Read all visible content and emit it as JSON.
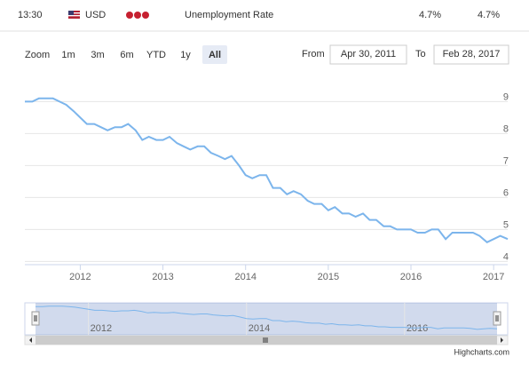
{
  "header": {
    "time": "13:30",
    "currency": "USD",
    "event": "Unemployment Rate",
    "actual": "4.7%",
    "forecast": "4.7%"
  },
  "range_selector": {
    "zoom_label": "Zoom",
    "buttons": [
      "1m",
      "3m",
      "6m",
      "YTD",
      "1y",
      "All"
    ],
    "from_label": "From",
    "from": "Apr 30, 2011",
    "to_label": "To",
    "to": "Feb 28, 2017"
  },
  "credits": "Highcharts.com",
  "chart_data": {
    "type": "line",
    "x": [
      2011.33,
      2011.42,
      2011.5,
      2011.58,
      2011.67,
      2011.75,
      2011.83,
      2011.92,
      2012,
      2012.08,
      2012.17,
      2012.25,
      2012.33,
      2012.42,
      2012.5,
      2012.58,
      2012.67,
      2012.75,
      2012.83,
      2012.92,
      2013,
      2013.08,
      2013.17,
      2013.25,
      2013.33,
      2013.42,
      2013.5,
      2013.58,
      2013.67,
      2013.75,
      2013.83,
      2013.92,
      2014,
      2014.08,
      2014.17,
      2014.25,
      2014.33,
      2014.42,
      2014.5,
      2014.58,
      2014.67,
      2014.75,
      2014.83,
      2014.92,
      2015,
      2015.08,
      2015.17,
      2015.25,
      2015.33,
      2015.42,
      2015.5,
      2015.58,
      2015.67,
      2015.75,
      2015.83,
      2015.92,
      2016,
      2016.08,
      2016.17,
      2016.25,
      2016.33,
      2016.42,
      2016.5,
      2016.58,
      2016.67,
      2016.75,
      2016.83,
      2016.92,
      2017,
      2017.08,
      2017.17
    ],
    "series": [
      {
        "color": "#7cb5ec",
        "values": [
          9.0,
          9.0,
          9.1,
          9.1,
          9.1,
          9.0,
          8.9,
          8.7,
          8.5,
          8.3,
          8.3,
          8.2,
          8.1,
          8.2,
          8.2,
          8.3,
          8.1,
          7.8,
          7.9,
          7.8,
          7.8,
          7.9,
          7.7,
          7.6,
          7.5,
          7.6,
          7.6,
          7.4,
          7.3,
          7.2,
          7.3,
          7.0,
          6.7,
          6.6,
          6.7,
          6.7,
          6.3,
          6.3,
          6.1,
          6.2,
          6.1,
          5.9,
          5.8,
          5.8,
          5.6,
          5.7,
          5.5,
          5.5,
          5.4,
          5.5,
          5.3,
          5.3,
          5.1,
          5.1,
          5.0,
          5.0,
          5.0,
          4.9,
          4.9,
          5.0,
          5.0,
          4.7,
          4.9,
          4.9,
          4.9,
          4.9,
          4.8,
          4.6,
          4.7,
          4.8,
          4.7
        ]
      }
    ],
    "xlim": [
      2011.33,
      2017.17
    ],
    "xticks": [
      2012,
      2013,
      2014,
      2015,
      2016,
      2017
    ],
    "ylim": [
      3.9,
      9.4
    ],
    "yticks": [
      4,
      5,
      6,
      7,
      8,
      9
    ],
    "grid": true
  }
}
